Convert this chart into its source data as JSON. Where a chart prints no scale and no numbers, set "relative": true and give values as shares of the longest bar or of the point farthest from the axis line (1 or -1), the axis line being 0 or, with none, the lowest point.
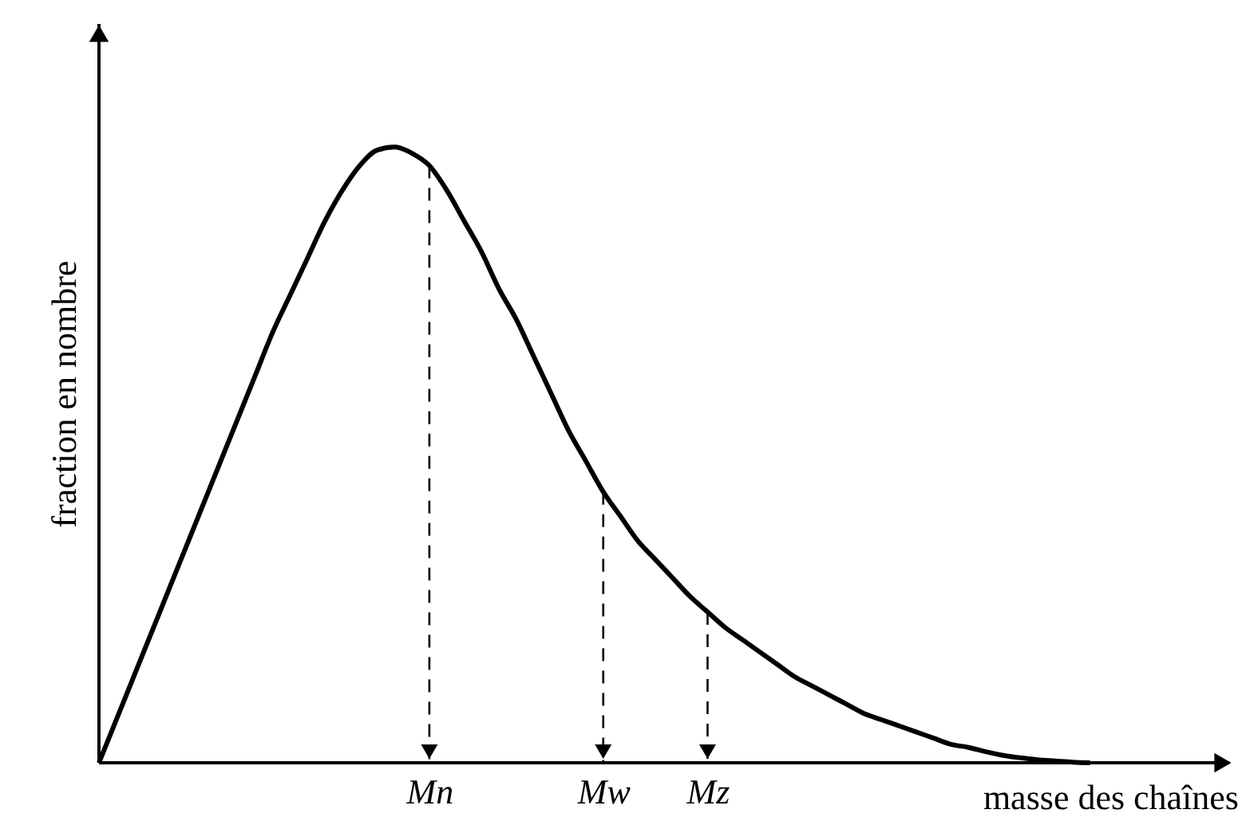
{
  "chart_data": {
    "type": "line",
    "relative": true,
    "xlabel": "masse des chaînes",
    "ylabel": "fraction en nombre",
    "categories": [
      null,
      null,
      null,
      null,
      null,
      null,
      null,
      null,
      null,
      null,
      null,
      null,
      null,
      null,
      null,
      null,
      null,
      null,
      null,
      "Mn",
      null,
      null,
      null,
      null,
      null,
      null,
      null,
      null,
      null,
      "Mw",
      null,
      null,
      null,
      null,
      null,
      "Mz",
      null,
      null,
      null,
      null,
      null,
      null,
      null,
      null,
      null,
      null,
      null,
      null,
      null,
      null,
      null,
      null,
      null,
      null,
      null,
      null,
      null,
      null,
      null,
      null,
      null,
      null,
      null,
      null,
      null,
      null
    ],
    "series": [
      {
        "color": "#000000",
        "values": [
          0,
          0.07,
          0.14,
          0.21,
          0.28,
          0.35,
          0.42,
          0.49,
          0.56,
          0.63,
          0.7,
          0.76,
          0.82,
          0.88,
          0.93,
          0.97,
          0.995,
          1.0,
          0.99,
          0.97,
          0.93,
          0.88,
          0.83,
          0.77,
          0.72,
          0.66,
          0.6,
          0.54,
          0.49,
          0.44,
          0.4,
          0.36,
          0.33,
          0.3,
          0.27,
          0.245,
          0.22,
          0.2,
          0.18,
          0.16,
          0.14,
          0.125,
          0.11,
          0.095,
          0.08,
          0.07,
          0.06,
          0.05,
          0.04,
          0.03,
          0.025,
          0.018,
          0.012,
          0.008,
          0.005,
          0.003,
          0.001,
          0,
          null,
          null,
          null,
          null,
          null,
          null,
          null,
          null
        ]
      }
    ],
    "ref_lines": [
      {
        "axis": "x",
        "value": "Mn",
        "line_style": "dashed"
      },
      {
        "axis": "x",
        "value": "Mw",
        "line_style": "dashed"
      },
      {
        "axis": "x",
        "value": "Mz",
        "line_style": "dashed"
      }
    ],
    "marker": "none",
    "line_style": "solid",
    "grid": false
  }
}
